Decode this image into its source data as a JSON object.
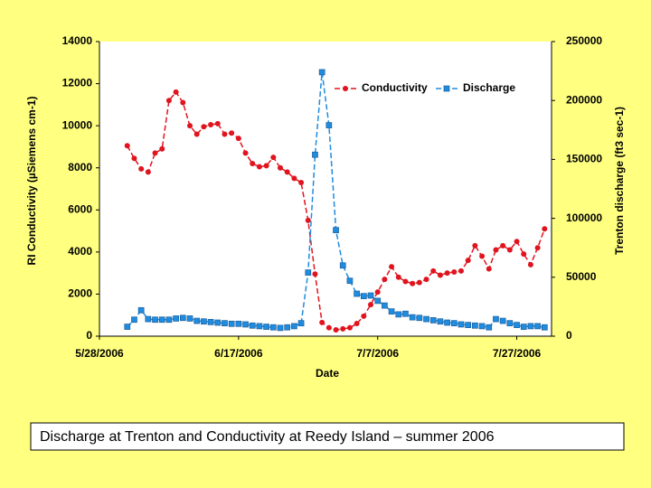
{
  "chart_data": {
    "type": "line",
    "caption": "Discharge at Trenton and Conductivity at Reedy Island – summer 2006",
    "x_label": "Date",
    "y_label": "RI Conductivity (µSiemens cm-1)",
    "y2_label": "Trenton discharge (ft3 sec-1)",
    "legend": "top-right",
    "x": [
      "6/1/2006",
      "6/2/2006",
      "6/3/2006",
      "6/4/2006",
      "6/5/2006",
      "6/6/2006",
      "6/7/2006",
      "6/8/2006",
      "6/9/2006",
      "6/10/2006",
      "6/11/2006",
      "6/12/2006",
      "6/13/2006",
      "6/14/2006",
      "6/15/2006",
      "6/16/2006",
      "6/17/2006",
      "6/18/2006",
      "6/19/2006",
      "6/20/2006",
      "6/21/2006",
      "6/22/2006",
      "6/23/2006",
      "6/24/2006",
      "6/25/2006",
      "6/26/2006",
      "6/27/2006",
      "6/28/2006",
      "6/29/2006",
      "6/30/2006",
      "7/1/2006",
      "7/2/2006",
      "7/3/2006",
      "7/4/2006",
      "7/5/2006",
      "7/6/2006",
      "7/7/2006",
      "7/8/2006",
      "7/9/2006",
      "7/10/2006",
      "7/11/2006",
      "7/12/2006",
      "7/13/2006",
      "7/14/2006",
      "7/15/2006",
      "7/16/2006",
      "7/17/2006",
      "7/18/2006",
      "7/19/2006",
      "7/20/2006",
      "7/21/2006",
      "7/22/2006",
      "7/23/2006",
      "7/24/2006",
      "7/25/2006",
      "7/26/2006",
      "7/27/2006",
      "7/28/2006",
      "7/29/2006",
      "7/30/2006",
      "7/31/2006"
    ],
    "series": [
      {
        "name": "Conductivity",
        "color": "#e0141e",
        "marker": "circle",
        "values": [
          9050,
          8450,
          7950,
          7800,
          8700,
          8900,
          11200,
          11600,
          11100,
          10000,
          9600,
          9950,
          10050,
          10100,
          9600,
          9650,
          9400,
          8700,
          8200,
          8050,
          8100,
          8500,
          8000,
          7800,
          7500,
          7300,
          5500,
          2950,
          650,
          400,
          300,
          350,
          400,
          600,
          950,
          1500,
          2100,
          2700,
          3300,
          2800,
          2600,
          2500,
          2550,
          2700,
          3100,
          2900,
          3000,
          3050,
          3100,
          3600,
          4300,
          3800,
          3200,
          4100,
          4300,
          4100,
          4500,
          3900,
          3400,
          4200,
          5100
        ]
      },
      {
        "name": "Discharge",
        "color": "#1e8ce0",
        "marker": "square",
        "axis": "y2",
        "values": [
          8000,
          14000,
          22000,
          14500,
          14000,
          14000,
          14000,
          15000,
          15500,
          15000,
          13000,
          12500,
          12000,
          11500,
          11000,
          10500,
          10500,
          10000,
          9000,
          8500,
          8000,
          7500,
          7000,
          7500,
          8500,
          11000,
          54000,
          154000,
          224000,
          179000,
          90000,
          60000,
          47000,
          36000,
          34000,
          34500,
          30000,
          26000,
          21000,
          18500,
          19000,
          16000,
          15500,
          14500,
          13500,
          12500,
          11500,
          11000,
          10000,
          9500,
          9000,
          8500,
          7500,
          14500,
          13000,
          11000,
          9500,
          8000,
          8500,
          8500,
          7500
        ]
      }
    ],
    "xlim": [
      "5/28/2006",
      "8/1/2006"
    ],
    "xticks": [
      "5/28/2006",
      "6/17/2006",
      "7/7/2006",
      "7/27/2006"
    ],
    "ylim": [
      0,
      14000
    ],
    "yticks": [
      0,
      2000,
      4000,
      6000,
      8000,
      10000,
      12000,
      14000
    ],
    "y2lim": [
      0,
      250000
    ],
    "y2ticks": [
      0,
      50000,
      100000,
      150000,
      200000,
      250000
    ]
  }
}
